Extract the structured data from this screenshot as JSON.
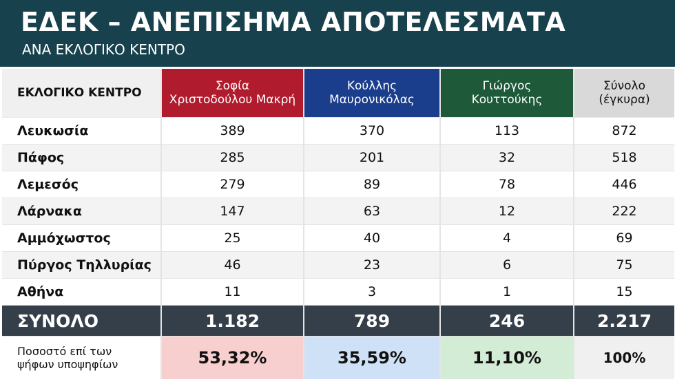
{
  "header": {
    "title": "ΕΔΕΚ – ΑΝΕΠΙΣΗΜΑ ΑΠΟΤΕΛΕΣΜΑΤΑ",
    "subtitle": "ΑΝΑ ΕΚΛΟΓΙΚΟ ΚΕΝΤΡΟ"
  },
  "table": {
    "columns": [
      "ΕΚΛΟΓΙΚΟ ΚΕΝΤΡΟ",
      "Σοφία\nΧριστοδούλου Μακρή",
      "Κούλλης\nΜαυρονικόλας",
      "Γιώργος\nΚουττούκης",
      "Σύνολο\n(έγκυρα)"
    ],
    "rows": [
      [
        "Λευκωσία",
        "389",
        "370",
        "113",
        "872"
      ],
      [
        "Πάφος",
        "285",
        "201",
        "32",
        "518"
      ],
      [
        "Λεμεσός",
        "279",
        "89",
        "78",
        "446"
      ],
      [
        "Λάρνακα",
        "147",
        "63",
        "12",
        "222"
      ],
      [
        "Αμμόχωστος",
        "25",
        "40",
        "4",
        "69"
      ],
      [
        "Πύργος Τηλλυρίας",
        "46",
        "23",
        "6",
        "75"
      ],
      [
        "Αθήνα",
        "11",
        "3",
        "1",
        "15"
      ]
    ],
    "total": [
      "ΣΥΝΟΛΟ",
      "1.182",
      "789",
      "246",
      "2.217"
    ],
    "share": [
      "Ποσοστό επί των\nψήφων υποψηφίων",
      "53,32%",
      "35,59%",
      "11,10%",
      "100%"
    ]
  }
}
